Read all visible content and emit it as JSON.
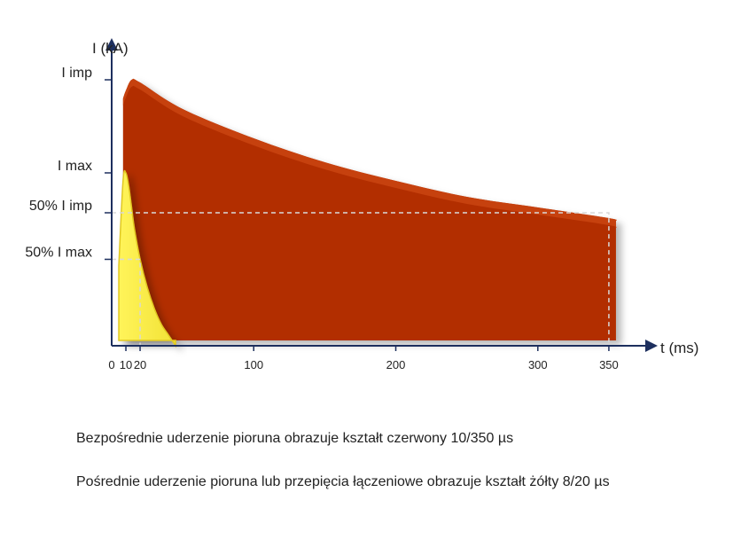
{
  "chart_data": {
    "type": "area",
    "ylabel": "I (kA)",
    "xlabel": "t (ms)",
    "x_ticks": [
      {
        "label": "0",
        "value": 0
      },
      {
        "label": "10",
        "value": 10
      },
      {
        "label": "20",
        "value": 20
      },
      {
        "label": "100",
        "value": 100
      },
      {
        "label": "200",
        "value": 200
      },
      {
        "label": "300",
        "value": 300
      },
      {
        "label": "350",
        "value": 350
      }
    ],
    "xlim": [
      0,
      380
    ],
    "y_ticks": [
      {
        "label": "I imp",
        "value": 100
      },
      {
        "label": "I max",
        "value": 65
      },
      {
        "label": "50% I imp",
        "value": 50
      },
      {
        "label": "50% I max",
        "value": 32.5
      }
    ],
    "ylim": [
      0,
      120
    ],
    "series": [
      {
        "color": "#b83100",
        "x": [
          8,
          10,
          14,
          20,
          50,
          100,
          150,
          200,
          250,
          300,
          350,
          355
        ],
        "y": [
          93,
          96,
          100,
          99,
          89,
          78,
          69,
          62,
          56,
          52,
          48,
          47
        ]
      },
      {
        "color": "#f8f03a",
        "x": [
          5,
          8,
          10,
          12,
          14,
          16,
          20,
          25,
          30,
          35,
          40,
          45
        ],
        "y": [
          30,
          62,
          65,
          60,
          52,
          44,
          32.5,
          22,
          14,
          8,
          4,
          0
        ]
      }
    ],
    "reference_lines": [
      {
        "x": 350,
        "y": 50
      },
      {
        "x": 20,
        "y": 32.5
      }
    ],
    "grid": false
  },
  "captions": [
    "Bezpośrednie uderzenie pioruna obrazuje kształt czerwony 10/350 µs",
    "Pośrednie uderzenie pioruna lub przepięcia łączeniowe obrazuje kształt żółty 8/20 µs"
  ]
}
